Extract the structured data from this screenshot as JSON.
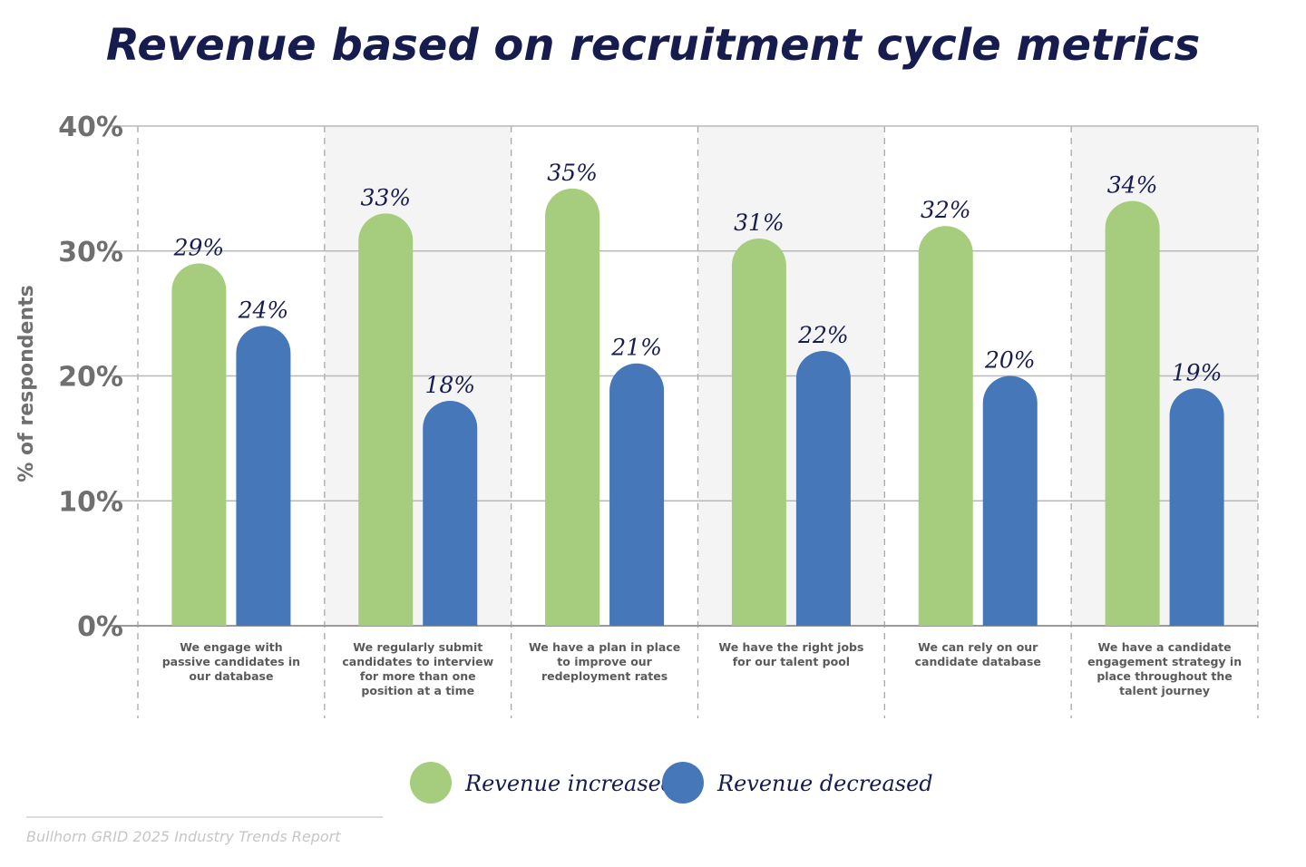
{
  "title": "Revenue based on recruitment cycle metrics",
  "source": "Bullhorn GRID 2025 Industry Trends Report",
  "chart_data": {
    "type": "bar",
    "title": "Revenue based on recruitment cycle metrics",
    "xlabel": "",
    "ylabel": "% of respondents",
    "ylim": [
      0,
      40
    ],
    "yticks": [
      0,
      10,
      20,
      30,
      40
    ],
    "ytick_labels": [
      "0%",
      "10%",
      "20%",
      "30%",
      "40%"
    ],
    "grid": true,
    "legend_position": "bottom-center",
    "categories": [
      "We engage with passive candidates in our database",
      "We regularly submit candidates to interview for more than one position at a time",
      "We have a plan in place to improve our redeployment rates",
      "We have the right jobs for our talent pool",
      "We can rely on our candidate database",
      "We have a candidate engagement strategy in place throughout the talent journey"
    ],
    "series": [
      {
        "name": "Revenue increased",
        "color": "#a6cd7d",
        "values": [
          29,
          33,
          35,
          31,
          32,
          34
        ],
        "labels": [
          "29%",
          "33%",
          "35%",
          "31%",
          "32%",
          "34%"
        ]
      },
      {
        "name": "Revenue decreased",
        "color": "#4577b9",
        "values": [
          24,
          18,
          21,
          22,
          20,
          19
        ],
        "labels": [
          "24%",
          "18%",
          "21%",
          "22%",
          "20%",
          "19%"
        ]
      }
    ]
  },
  "colors": {
    "title": "#161c4e",
    "axis_text": "#6f6f6f",
    "gridline": "#b9b9b9",
    "band": "#f4f4f4",
    "source_text": "#c6c6c6"
  }
}
